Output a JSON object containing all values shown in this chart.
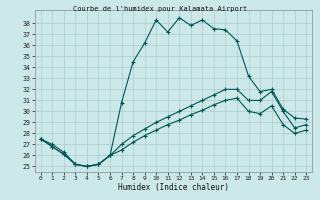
{
  "title": "Courbe de l'humidex pour Kalamata Airport",
  "xlabel": "Humidex (Indice chaleur)",
  "bg_color": "#cce8e8",
  "grid_color": "#aacccc",
  "line_color": "#005555",
  "xlim": [
    -0.5,
    23.5
  ],
  "ylim": [
    24.5,
    39.2
  ],
  "xticks": [
    0,
    1,
    2,
    3,
    4,
    5,
    6,
    7,
    8,
    9,
    10,
    11,
    12,
    13,
    14,
    15,
    16,
    17,
    18,
    19,
    20,
    21,
    22,
    23
  ],
  "yticks": [
    25,
    26,
    27,
    28,
    29,
    30,
    31,
    32,
    33,
    34,
    35,
    36,
    37,
    38
  ],
  "line1_x": [
    0,
    1,
    2,
    3,
    4,
    5,
    6,
    7,
    8,
    9,
    10,
    11,
    12,
    13,
    14,
    15,
    16,
    17,
    18,
    19,
    20,
    21,
    22,
    23
  ],
  "line1_y": [
    27.5,
    27.0,
    26.3,
    25.2,
    25.0,
    25.2,
    26.0,
    30.8,
    34.5,
    36.2,
    38.3,
    37.2,
    38.5,
    37.8,
    38.3,
    37.5,
    37.4,
    36.4,
    33.2,
    31.8,
    32.0,
    30.2,
    29.4,
    29.3
  ],
  "line2_x": [
    0,
    1,
    2,
    3,
    4,
    5,
    6,
    7,
    8,
    9,
    10,
    11,
    12,
    13,
    14,
    15,
    16,
    17,
    18,
    19,
    20,
    21,
    22,
    23
  ],
  "line2_y": [
    27.5,
    26.8,
    26.1,
    25.2,
    25.0,
    25.2,
    26.0,
    27.0,
    27.8,
    28.4,
    29.0,
    29.5,
    30.0,
    30.5,
    31.0,
    31.5,
    32.0,
    32.0,
    31.0,
    31.0,
    31.8,
    30.0,
    28.5,
    28.8
  ],
  "line3_x": [
    0,
    1,
    2,
    3,
    4,
    5,
    6,
    7,
    8,
    9,
    10,
    11,
    12,
    13,
    14,
    15,
    16,
    17,
    18,
    19,
    20,
    21,
    22,
    23
  ],
  "line3_y": [
    27.5,
    26.8,
    26.1,
    25.2,
    25.0,
    25.2,
    26.0,
    26.5,
    27.2,
    27.8,
    28.3,
    28.8,
    29.2,
    29.7,
    30.1,
    30.6,
    31.0,
    31.2,
    30.0,
    29.8,
    30.5,
    28.8,
    28.0,
    28.3
  ]
}
